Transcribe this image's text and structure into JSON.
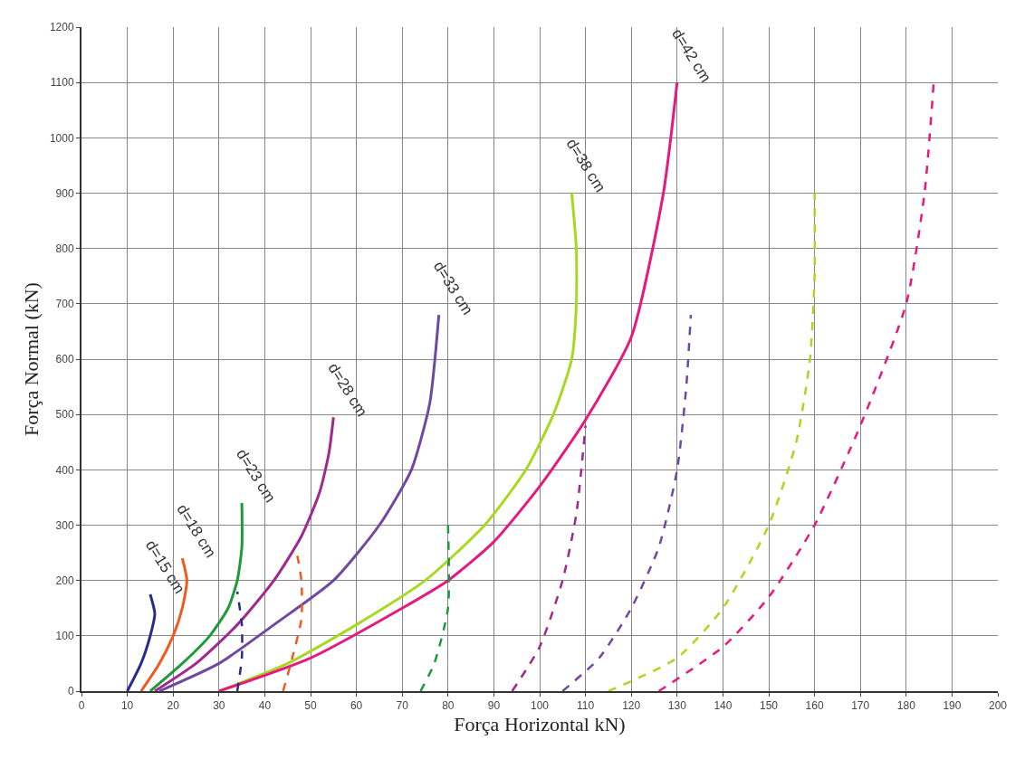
{
  "chart_data": {
    "type": "line",
    "xlabel": "Força Horizontal kN)",
    "ylabel": "Força Normal (kN)",
    "xlim": [
      0,
      200
    ],
    "ylim": [
      0,
      1200
    ],
    "xticks": [
      0,
      10,
      20,
      30,
      40,
      50,
      60,
      70,
      80,
      90,
      100,
      110,
      120,
      130,
      140,
      150,
      160,
      170,
      180,
      190,
      200
    ],
    "yticks": [
      0,
      100,
      200,
      300,
      400,
      500,
      600,
      700,
      800,
      900,
      1000,
      1100,
      1200
    ],
    "grid": true,
    "series": [
      {
        "name": "d=15 cm",
        "color": "#2b2b8c",
        "line_style": "solid",
        "x": [
          10,
          13,
          15,
          16,
          15
        ],
        "values": [
          0,
          50,
          100,
          140,
          175
        ]
      },
      {
        "name": "d=18 cm",
        "color": "#f05a1e",
        "line_style": "solid",
        "x": [
          13,
          17,
          20,
          22,
          23,
          22
        ],
        "values": [
          0,
          50,
          100,
          150,
          200,
          240
        ]
      },
      {
        "name": "d=23 cm",
        "color": "#1e9a3c",
        "line_style": "solid",
        "x": [
          15,
          22,
          28,
          32,
          34,
          35,
          35
        ],
        "values": [
          0,
          50,
          100,
          150,
          200,
          260,
          340
        ]
      },
      {
        "name": "d=28 cm",
        "color": "#a02890",
        "line_style": "solid",
        "x": [
          16,
          25,
          34,
          42,
          48,
          52,
          54,
          55
        ],
        "values": [
          0,
          50,
          120,
          200,
          280,
          360,
          430,
          495
        ]
      },
      {
        "name": "d=33 cm",
        "color": "#7048a0",
        "line_style": "solid",
        "x": [
          17,
          30,
          42,
          55,
          65,
          72,
          76,
          78
        ],
        "values": [
          0,
          50,
          120,
          200,
          300,
          400,
          520,
          680
        ]
      },
      {
        "name": "d=38 cm",
        "color": "#a8d820",
        "line_style": "solid",
        "x": [
          30,
          45,
          60,
          75,
          88,
          97,
          103,
          107,
          108,
          108,
          107
        ],
        "values": [
          0,
          50,
          120,
          200,
          300,
          400,
          500,
          600,
          700,
          800,
          900
        ]
      },
      {
        "name": "d=42 cm",
        "color": "#e6197f",
        "line_style": "solid",
        "x": [
          30,
          50,
          70,
          80,
          90,
          100,
          110,
          120,
          127,
          130
        ],
        "values": [
          0,
          60,
          150,
          200,
          270,
          370,
          490,
          640,
          900,
          1100
        ]
      },
      {
        "color": "#2b2b8c",
        "line_style": "dashed",
        "x": [
          34,
          35,
          35,
          34
        ],
        "values": [
          0,
          60,
          120,
          180
        ]
      },
      {
        "color": "#f05a1e",
        "line_style": "dashed",
        "x": [
          44,
          46,
          48,
          48,
          47
        ],
        "values": [
          0,
          60,
          130,
          200,
          250
        ]
      },
      {
        "color": "#1e9a3c",
        "line_style": "dashed",
        "x": [
          74,
          77,
          80,
          80
        ],
        "values": [
          0,
          50,
          150,
          300
        ]
      },
      {
        "color": "#a02890",
        "line_style": "dashed",
        "x": [
          94,
          100,
          105,
          108,
          110
        ],
        "values": [
          0,
          80,
          200,
          320,
          480
        ]
      },
      {
        "color": "#7048a0",
        "line_style": "dashed",
        "x": [
          105,
          113,
          120,
          126,
          130,
          132,
          133
        ],
        "values": [
          0,
          60,
          150,
          260,
          400,
          550,
          680
        ]
      },
      {
        "color": "#a8d820",
        "line_style": "dashed",
        "x": [
          115,
          130,
          140,
          150,
          156,
          159,
          160,
          160
        ],
        "values": [
          0,
          60,
          150,
          300,
          450,
          600,
          750,
          900
        ]
      },
      {
        "color": "#e6197f",
        "line_style": "dashed",
        "x": [
          126,
          140,
          150,
          160,
          170,
          180,
          184,
          186
        ],
        "values": [
          0,
          80,
          170,
          300,
          480,
          700,
          900,
          1100
        ]
      }
    ]
  }
}
